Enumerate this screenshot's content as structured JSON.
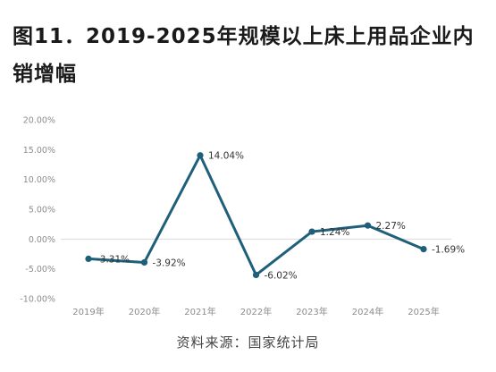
{
  "title": "图11．2019-2025年规模以上床上用品企业内销增幅",
  "source": "资料来源：国家统计局",
  "chart_data": {
    "type": "line",
    "categories": [
      "2019年",
      "2020年",
      "2021年",
      "2022年",
      "2023年",
      "2024年",
      "2025年"
    ],
    "series": [
      {
        "values": [
          -3.31,
          -3.92,
          14.04,
          -6.02,
          1.24,
          2.27,
          -1.69
        ]
      }
    ],
    "data_labels": [
      "-3.31%",
      "-3.92%",
      "14.04%",
      "-6.02%",
      "1.24%",
      "2.27%",
      "-1.69%"
    ],
    "y_ticks": [
      20,
      15,
      10,
      5,
      0,
      -5,
      -10
    ],
    "y_tick_labels": [
      "20.00%",
      "15.00%",
      "10.00%",
      "5.00%",
      "0.00%",
      "-5.00%",
      "-10.00%"
    ],
    "ylim": [
      -10,
      20
    ],
    "title": "",
    "xlabel": "",
    "ylabel": "",
    "grid": false,
    "line_color": "#1f5f7a",
    "axis_color": "#d9d9d9"
  }
}
